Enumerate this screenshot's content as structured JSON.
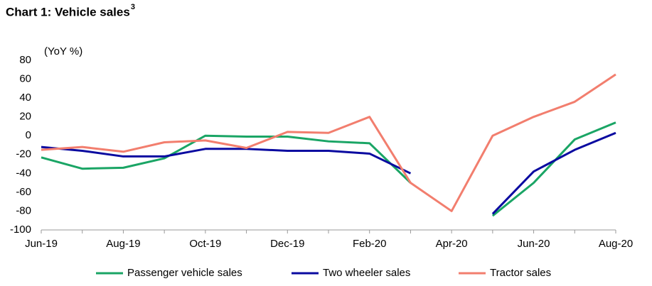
{
  "chart_data": {
    "type": "line",
    "title": "Chart 1: Vehicle sales",
    "title_superscript": "3",
    "y_label": "(YoY %)",
    "categories": [
      "Jun-19",
      null,
      "Aug-19",
      null,
      "Oct-19",
      null,
      "Dec-19",
      null,
      "Feb-20",
      null,
      "Apr-20",
      null,
      "Jun-20",
      null,
      "Aug-20"
    ],
    "series": [
      {
        "name": "Passenger vehicle sales",
        "color": "#1aa565",
        "values": [
          -23,
          -35,
          -34,
          -24,
          0,
          -1,
          -1,
          -6,
          -8,
          -50,
          null,
          -85,
          -50,
          -4,
          14
        ]
      },
      {
        "name": "Two wheeler sales",
        "color": "#0a0aa0",
        "values": [
          -12,
          -16,
          -22,
          -22,
          -14,
          -14,
          -16,
          -16,
          -19,
          -40,
          null,
          -83,
          -38,
          -15,
          3
        ]
      },
      {
        "name": "Tractor sales",
        "color": "#f27e6e",
        "values": [
          -15,
          -12,
          -17,
          -7,
          -5,
          -13,
          4,
          3,
          20,
          -50,
          -80,
          0,
          20,
          36,
          65
        ]
      }
    ],
    "ylim": [
      -100,
      80
    ],
    "yticks": [
      -100,
      -80,
      -60,
      -40,
      -20,
      0,
      20,
      40,
      60,
      80
    ],
    "grid": false,
    "legend": "bottom"
  }
}
